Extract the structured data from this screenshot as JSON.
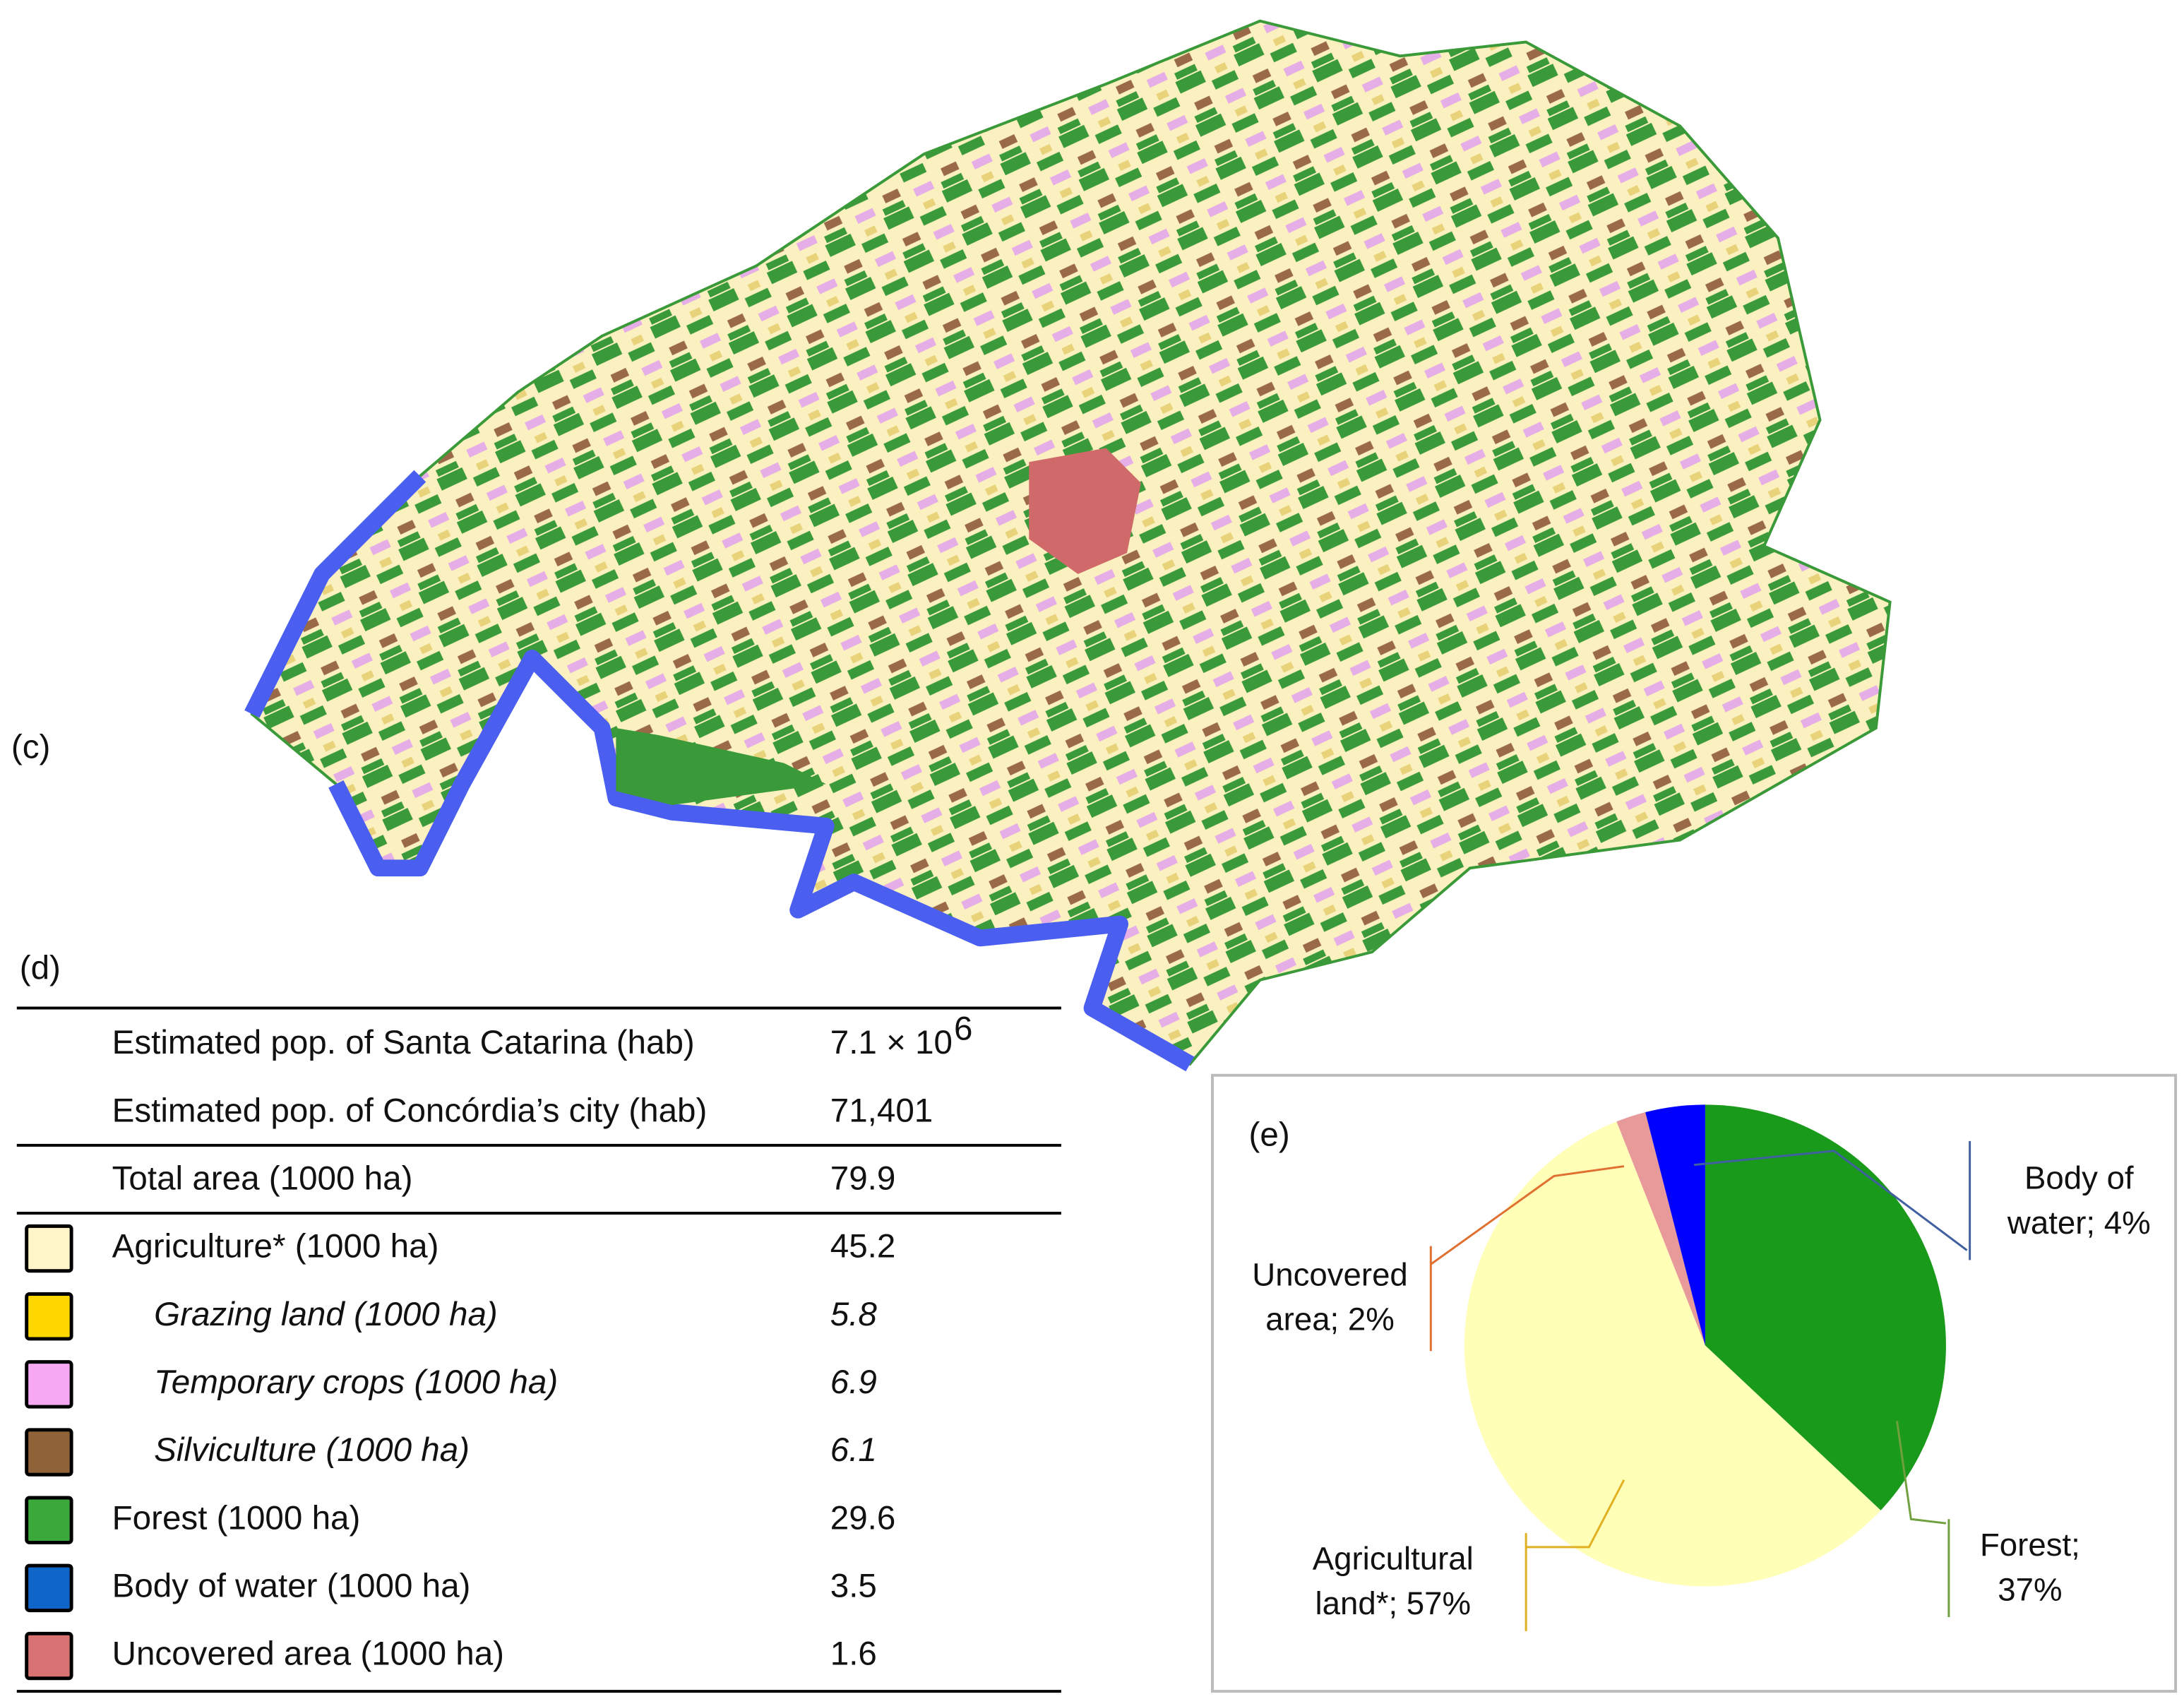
{
  "map": {
    "label": "(c)"
  },
  "table": {
    "label": "(d)",
    "groups": [
      [
        {
          "label": "Estimated pop. of Santa Catarina (hab)",
          "value": "7.1 × 10",
          "value_sup": "6"
        },
        {
          "label": "Estimated pop. of Concórdia’s city (hab)",
          "value": "71,401"
        }
      ],
      [
        {
          "label": "Total area (1000 ha)",
          "value": "79.9"
        }
      ],
      [
        {
          "swatch": "#fff5c8",
          "label": "Agriculture* (1000 ha)",
          "value": "45.2"
        },
        {
          "swatch": "#ffd700",
          "italic": true,
          "label": "Grazing land (1000 ha)",
          "value": "5.8"
        },
        {
          "swatch": "#f7a8f2",
          "italic": true,
          "label": "Temporary crops (1000 ha)",
          "value": "6.9"
        },
        {
          "swatch": "#8f6238",
          "italic": true,
          "label": "Silviculture (1000 ha)",
          "value": "6.1"
        },
        {
          "swatch": "#3aa83a",
          "label": "Forest (1000 ha)",
          "value": "29.6"
        },
        {
          "swatch": "#1066c8",
          "label": "Body of water (1000 ha)",
          "value": "3.5"
        },
        {
          "swatch": "#d87272",
          "label": "Uncovered area (1000 ha)",
          "value": "1.6"
        }
      ]
    ]
  },
  "chart_data": {
    "type": "pie",
    "panel_label": "(e)",
    "categories": [
      "Forest",
      "Agricultural land*",
      "Uncovered area",
      "Body of water"
    ],
    "values": [
      37,
      57,
      2,
      4
    ],
    "value_labels": [
      [
        "Forest;",
        "37%"
      ],
      [
        "Agricultural",
        "land*; 57%"
      ],
      [
        "Uncovered",
        "area; 2%"
      ],
      [
        "Body of",
        "water; 4%"
      ]
    ],
    "colors": [
      "#1a9a1a",
      "#ffffb8",
      "#e89a9a",
      "#0000ff"
    ]
  }
}
